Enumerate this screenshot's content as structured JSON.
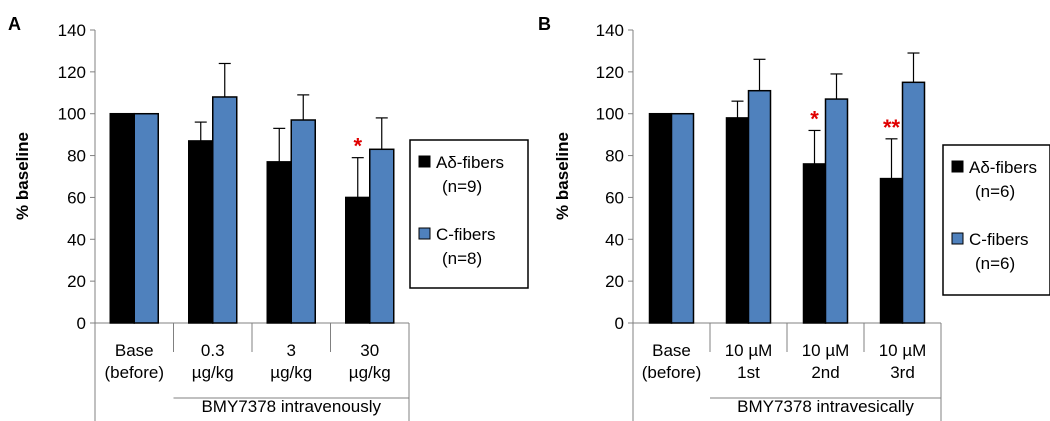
{
  "colors": {
    "series_a": "#000000",
    "series_c": "#4f81bd",
    "significance": "#e00000",
    "axis": "#808080",
    "legend_border": "#000000"
  },
  "chart_data": [
    {
      "panel_label": "A",
      "type": "bar",
      "ylabel": "% baseline",
      "ylim": [
        0,
        140
      ],
      "yticks": [
        0,
        20,
        40,
        60,
        80,
        100,
        120,
        140
      ],
      "categories": [
        {
          "line1": "Base",
          "line2": "(before)"
        },
        {
          "line1": "0.3",
          "line2": "µg/kg"
        },
        {
          "line1": "3",
          "line2": "µg/kg"
        },
        {
          "line1": "30",
          "line2": "µg/kg"
        }
      ],
      "group_label": "BMY7378 intravenously",
      "series": [
        {
          "name_line1": "Aδ-fibers",
          "name_line2": "(n=9)",
          "color": "#000000",
          "values": [
            100,
            87,
            77,
            60
          ],
          "errors": [
            0,
            9,
            16,
            19
          ]
        },
        {
          "name_line1": "C-fibers",
          "name_line2": "(n=8)",
          "color": "#4f81bd",
          "values": [
            100,
            108,
            97,
            83
          ],
          "errors": [
            0,
            16,
            12,
            15
          ]
        }
      ],
      "significance": [
        {
          "category_index": 3,
          "series_index": 0,
          "label": "*"
        }
      ],
      "legend_position": "right"
    },
    {
      "panel_label": "B",
      "type": "bar",
      "ylabel": "% baseline",
      "ylim": [
        0,
        140
      ],
      "yticks": [
        0,
        20,
        40,
        60,
        80,
        100,
        120,
        140
      ],
      "categories": [
        {
          "line1": "Base",
          "line2": "(before)"
        },
        {
          "line1": "10 µM",
          "line2": "1st"
        },
        {
          "line1": "10 µM",
          "line2": "2nd"
        },
        {
          "line1": "10 µM",
          "line2": "3rd"
        }
      ],
      "group_label": "BMY7378 intravesically",
      "series": [
        {
          "name_line1": "Aδ-fibers",
          "name_line2": "(n=6)",
          "color": "#000000",
          "values": [
            100,
            98,
            76,
            69
          ],
          "errors": [
            0,
            8,
            16,
            19
          ]
        },
        {
          "name_line1": "C-fibers",
          "name_line2": "(n=6)",
          "color": "#4f81bd",
          "values": [
            100,
            111,
            107,
            115
          ],
          "errors": [
            0,
            15,
            12,
            14
          ]
        }
      ],
      "significance": [
        {
          "category_index": 2,
          "series_index": 0,
          "label": "*"
        },
        {
          "category_index": 3,
          "series_index": 0,
          "label": "**"
        }
      ],
      "legend_position": "right"
    }
  ]
}
